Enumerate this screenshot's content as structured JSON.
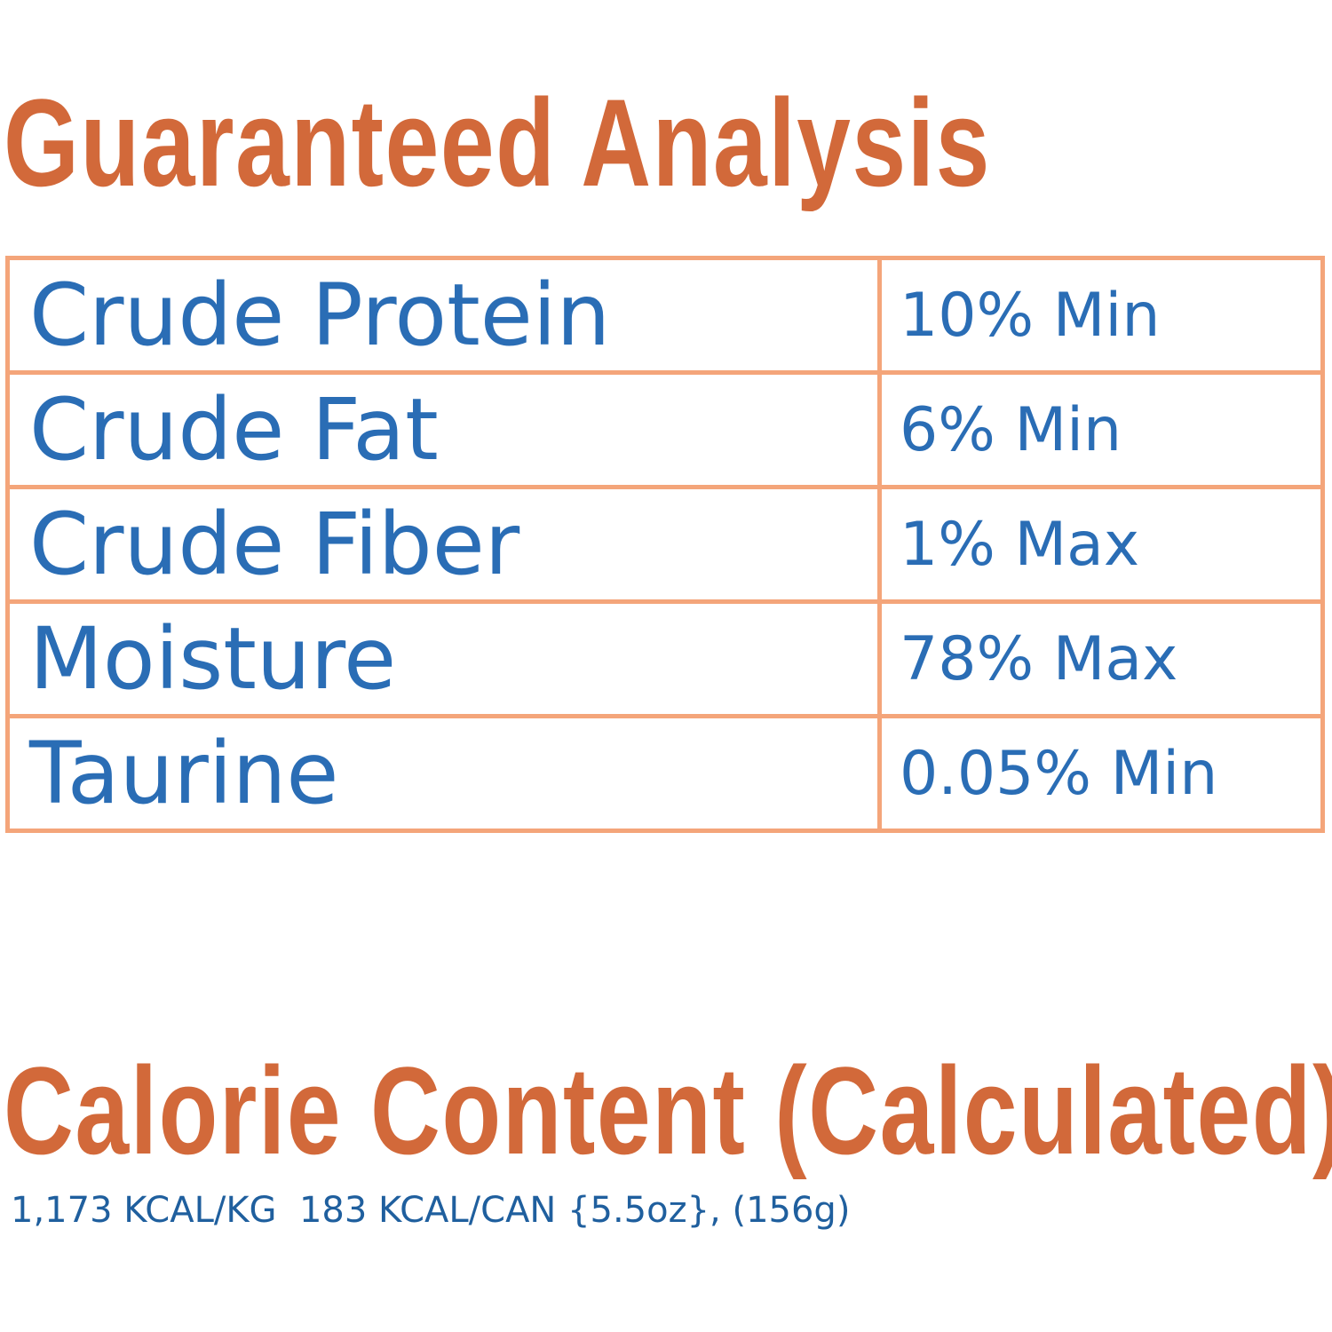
{
  "header": {
    "title": "Guaranteed Analysis"
  },
  "table": {
    "rows": [
      [
        "Crude Protein",
        "10% Min"
      ],
      [
        "Crude Fat",
        "6% Min"
      ],
      [
        "Crude Fiber",
        "1% Max"
      ],
      [
        "Moisture",
        "78% Max"
      ],
      [
        "Taurine",
        "0.05% Min"
      ]
    ]
  },
  "calories": {
    "title": "Calorie Content (Calculated)",
    "text": "1,173 KCAL/KG  183 KCAL/CAN {5.5oz}, (156g)"
  }
}
